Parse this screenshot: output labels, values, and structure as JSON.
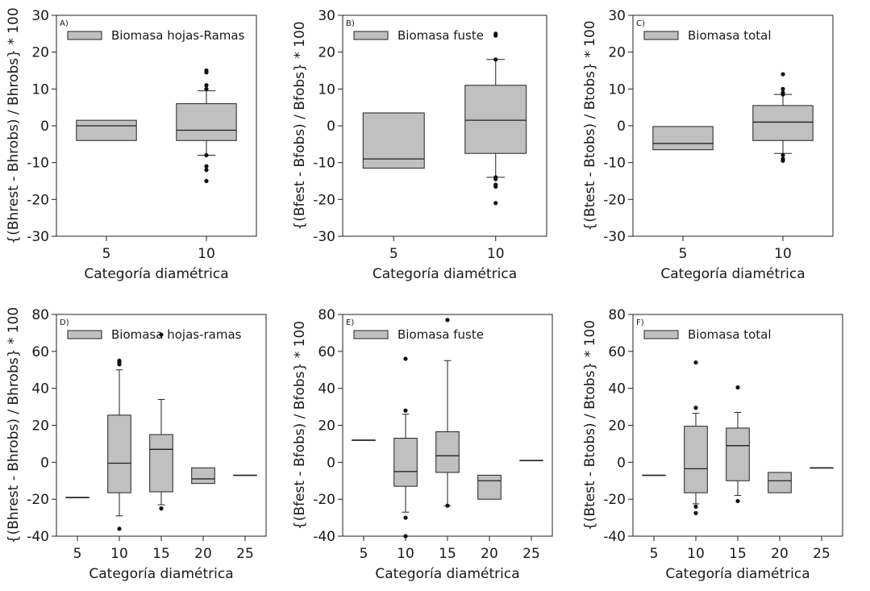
{
  "figure": {
    "colors": {
      "box_fill": "#c0c0c0",
      "stroke": "#222222",
      "background": "#ffffff"
    }
  },
  "chart_data": [
    {
      "type": "boxplot",
      "panel": "A)",
      "legend": "Biomasa hojas-Ramas",
      "xlabel": "Categoría diamétrica",
      "ylabel": "{(Bhrest - Bhrobs) / Bhrobs} * 100",
      "ylim": [
        -30,
        30
      ],
      "yticks": [
        -30,
        -20,
        -10,
        0,
        10,
        20,
        30
      ],
      "categories": [
        "5",
        "10"
      ],
      "boxes": [
        {
          "cat": "5",
          "q1": -4,
          "median": 0,
          "q3": 1.5,
          "whislo": null,
          "whishi": null,
          "fliers": []
        },
        {
          "cat": "10",
          "q1": -4,
          "median": -1.2,
          "q3": 6,
          "whislo": -8,
          "whishi": 9.5,
          "fliers": [
            15,
            14.5,
            11,
            10,
            -8,
            -11,
            -12,
            -15
          ]
        }
      ]
    },
    {
      "type": "boxplot",
      "panel": "B)",
      "legend": "Biomasa fuste",
      "xlabel": "Categoría diamétrica",
      "ylabel": "{(Bfest - Bfobs) / Bfobs} * 100",
      "ylim": [
        -30,
        30
      ],
      "yticks": [
        -30,
        -20,
        -10,
        0,
        10,
        20,
        30
      ],
      "categories": [
        "5",
        "10"
      ],
      "boxes": [
        {
          "cat": "5",
          "q1": -11.5,
          "median": -9,
          "q3": 3.5,
          "whislo": null,
          "whishi": null,
          "fliers": []
        },
        {
          "cat": "10",
          "q1": -7.5,
          "median": 1.5,
          "q3": 11,
          "whislo": -14,
          "whishi": 18,
          "fliers": [
            25,
            24.5,
            18,
            -14,
            -14.5,
            -16,
            -16.5,
            -21
          ]
        }
      ]
    },
    {
      "type": "boxplot",
      "panel": "C)",
      "legend": "Biomasa total",
      "xlabel": "Categoría diamétrica",
      "ylabel": "{(Btest - Btobs) / Btobs} * 100",
      "ylim": [
        -30,
        30
      ],
      "yticks": [
        -30,
        -20,
        -10,
        0,
        10,
        20,
        30
      ],
      "categories": [
        "5",
        "10"
      ],
      "boxes": [
        {
          "cat": "5",
          "q1": -6.5,
          "median": -4.8,
          "q3": -0.2,
          "whislo": null,
          "whishi": null,
          "fliers": []
        },
        {
          "cat": "10",
          "q1": -4,
          "median": 1,
          "q3": 5.5,
          "whislo": -7.5,
          "whishi": 8.5,
          "fliers": [
            14,
            10,
            9,
            8.5,
            -8,
            -9,
            -9.5
          ]
        }
      ]
    },
    {
      "type": "boxplot",
      "panel": "D)",
      "legend": "Biomasa hojas-ramas",
      "xlabel": "Categoría diamétrica",
      "ylabel": "{(Bhrest - Bhrobs) / Bhrobs} * 100",
      "ylim": [
        -40,
        80
      ],
      "yticks": [
        -40,
        -20,
        0,
        20,
        40,
        60,
        80
      ],
      "categories": [
        "5",
        "10",
        "15",
        "20",
        "25"
      ],
      "boxes": [
        {
          "cat": "5",
          "q1": -19,
          "median": -19,
          "q3": -19,
          "whislo": null,
          "whishi": null,
          "fliers": []
        },
        {
          "cat": "10",
          "q1": -16.5,
          "median": -0.5,
          "q3": 25.5,
          "whislo": -29,
          "whishi": 50,
          "fliers": [
            55,
            54,
            53,
            -36
          ]
        },
        {
          "cat": "15",
          "q1": -16,
          "median": 7,
          "q3": 15,
          "whislo": -23,
          "whishi": 34,
          "fliers": [
            69,
            -25
          ]
        },
        {
          "cat": "20",
          "q1": -11.5,
          "median": -9,
          "q3": -3,
          "whislo": null,
          "whishi": null,
          "fliers": []
        },
        {
          "cat": "25",
          "q1": -7,
          "median": -7,
          "q3": -7,
          "whislo": null,
          "whishi": null,
          "fliers": []
        }
      ]
    },
    {
      "type": "boxplot",
      "panel": "E)",
      "legend": "Biomasa fuste",
      "xlabel": "Categoría diamétrica",
      "ylabel": "{(Bfest - Bfobs) / Bfobs} * 100",
      "ylim": [
        -40,
        80
      ],
      "yticks": [
        -40,
        -20,
        0,
        20,
        40,
        60,
        80
      ],
      "categories": [
        "5",
        "10",
        "15",
        "20",
        "25"
      ],
      "boxes": [
        {
          "cat": "5",
          "q1": 12,
          "median": 12,
          "q3": 12,
          "whislo": null,
          "whishi": null,
          "fliers": []
        },
        {
          "cat": "10",
          "q1": -13,
          "median": -5,
          "q3": 13,
          "whislo": -27,
          "whishi": 26,
          "fliers": [
            56,
            28,
            -30,
            -40
          ]
        },
        {
          "cat": "15",
          "q1": -5.5,
          "median": 3.5,
          "q3": 16.5,
          "whislo": -23.5,
          "whishi": 55,
          "fliers": [
            77,
            -23.5
          ]
        },
        {
          "cat": "20",
          "q1": -20,
          "median": -10,
          "q3": -7,
          "whislo": null,
          "whishi": null,
          "fliers": []
        },
        {
          "cat": "25",
          "q1": 1,
          "median": 1,
          "q3": 1,
          "whislo": null,
          "whishi": null,
          "fliers": []
        }
      ]
    },
    {
      "type": "boxplot",
      "panel": "F)",
      "legend": "Biomasa total",
      "xlabel": "Categoría diamétrica",
      "ylabel": "{(Btest - Btobs) / Btobs} * 100",
      "ylim": [
        -40,
        80
      ],
      "yticks": [
        -40,
        -20,
        0,
        20,
        40,
        60,
        80
      ],
      "categories": [
        "5",
        "10",
        "15",
        "20",
        "25"
      ],
      "boxes": [
        {
          "cat": "5",
          "q1": -7,
          "median": -7,
          "q3": -7,
          "whislo": null,
          "whishi": null,
          "fliers": []
        },
        {
          "cat": "10",
          "q1": -16.5,
          "median": -3.5,
          "q3": 19.5,
          "whislo": -22.5,
          "whishi": 26.5,
          "fliers": [
            54,
            29.5,
            -24,
            -27.5
          ]
        },
        {
          "cat": "15",
          "q1": -10,
          "median": 9,
          "q3": 18.5,
          "whislo": -18,
          "whishi": 27,
          "fliers": [
            40.5,
            -21
          ]
        },
        {
          "cat": "20",
          "q1": -16.5,
          "median": -10,
          "q3": -5.5,
          "whislo": null,
          "whishi": null,
          "fliers": []
        },
        {
          "cat": "25",
          "q1": -3,
          "median": -3,
          "q3": -3,
          "whislo": null,
          "whishi": null,
          "fliers": []
        }
      ]
    }
  ]
}
